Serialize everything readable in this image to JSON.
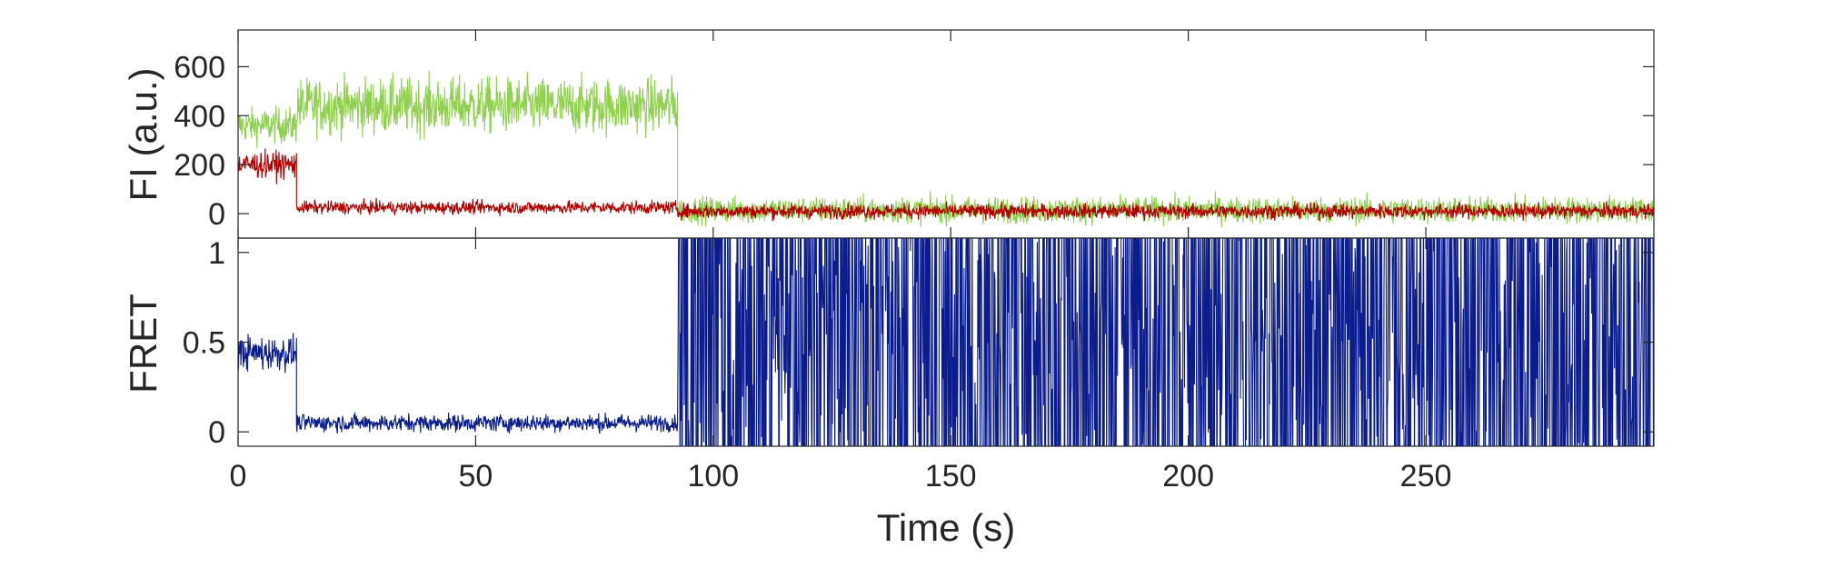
{
  "chart_data": [
    {
      "panel": "top",
      "type": "line",
      "ylabel": "FI (a.u.)",
      "xlim": [
        0,
        298
      ],
      "ylim": [
        -100,
        750
      ],
      "yticks": [
        0,
        200,
        400,
        600
      ],
      "series": [
        {
          "color": "#8fd14f",
          "segments": [
            {
              "t0": 0,
              "t1": 12.3,
              "mean": 360,
              "noise": 60
            },
            {
              "t0": 12.3,
              "t1": 92.5,
              "mean": 440,
              "noise": 95
            },
            {
              "t0": 92.5,
              "t1": 298,
              "mean": 15,
              "noise": 45
            }
          ]
        },
        {
          "color": "#b30000",
          "segments": [
            {
              "t0": 0,
              "t1": 12.3,
              "mean": 200,
              "noise": 45
            },
            {
              "t0": 12.3,
              "t1": 92.5,
              "mean": 25,
              "noise": 22
            },
            {
              "t0": 92.5,
              "t1": 298,
              "mean": 10,
              "noise": 25
            }
          ]
        }
      ]
    },
    {
      "panel": "bottom",
      "type": "line",
      "ylabel": "FRET",
      "xlabel": "Time (s)",
      "xlim": [
        0,
        298
      ],
      "ylim": [
        -0.08,
        1.08
      ],
      "xticks": [
        0,
        50,
        100,
        150,
        200,
        250
      ],
      "yticks": [
        0,
        0.5,
        1
      ],
      "series": [
        {
          "color": "#0b1c8c",
          "segments": [
            {
              "t0": 0,
              "t1": 12.3,
              "mean": 0.44,
              "noise": 0.08
            },
            {
              "t0": 12.3,
              "t1": 92.5,
              "mean": 0.05,
              "noise": 0.04
            },
            {
              "t0": 92.5,
              "t1": 298,
              "mean": 0.5,
              "noise": 0.6,
              "clipped": true
            }
          ]
        }
      ]
    }
  ]
}
